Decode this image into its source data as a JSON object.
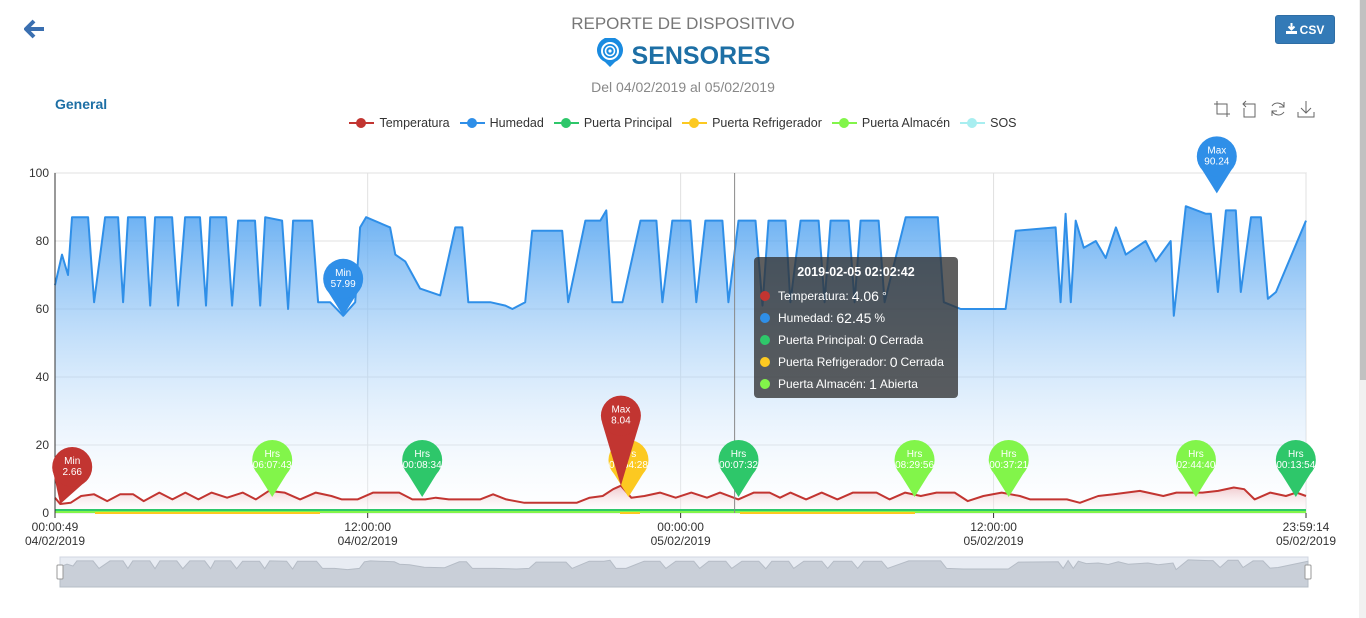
{
  "header": {
    "subtitle": "REPORTE DE DISPOSITIVO",
    "title": "SENSORES",
    "date_range": "Del 04/02/2019 al 05/02/2019",
    "csv_label": "CSV",
    "section": "General"
  },
  "toolbox": [
    "zoom-icon",
    "zoom-reset-icon",
    "restore-icon",
    "save-image-icon"
  ],
  "legend": [
    {
      "name": "Temperatura",
      "color": "#c23531"
    },
    {
      "name": "Humedad",
      "color": "#2f8fe8"
    },
    {
      "name": "Puerta Principal",
      "color": "#2ec76a"
    },
    {
      "name": "Puerta Refrigerador",
      "color": "#fcc921"
    },
    {
      "name": "Puerta Almacén",
      "color": "#82f54a"
    },
    {
      "name": "SOS",
      "color": "#a8eef0"
    }
  ],
  "tooltip": {
    "title": "2019-02-05 02:02:42",
    "rows": [
      {
        "label": "Temperatura:",
        "value": "4.06",
        "unit": "°",
        "color": "#c23531"
      },
      {
        "label": "Humedad:",
        "value": "62.45",
        "unit": "%",
        "color": "#2f8fe8"
      },
      {
        "label": "Puerta Principal:",
        "value": "0",
        "unit": "Cerrada",
        "color": "#2ec76a"
      },
      {
        "label": "Puerta Refrigerador:",
        "value": "0",
        "unit": "Cerrada",
        "color": "#fcc921"
      },
      {
        "label": "Puerta Almacén:",
        "value": "1",
        "unit": "Abierta",
        "color": "#82f54a"
      }
    ]
  },
  "chart_data": {
    "type": "line",
    "x_unit": "hours since 04/02/2019 00:00:49",
    "xlim": [
      0,
      47.97
    ],
    "ylim": [
      0,
      100
    ],
    "y_ticks": [
      "0",
      "20",
      "40",
      "60",
      "80",
      "100"
    ],
    "x_ticks": [
      {
        "at": 0,
        "time": "00:00:49",
        "date": "04/02/2019"
      },
      {
        "at": 11.99,
        "time": "12:00:00",
        "date": "04/02/2019"
      },
      {
        "at": 23.99,
        "time": "00:00:00",
        "date": "05/02/2019"
      },
      {
        "at": 35.99,
        "time": "12:00:00",
        "date": "05/02/2019"
      },
      {
        "at": 47.97,
        "time": "23:59:14",
        "date": "05/02/2019"
      }
    ],
    "crosshair_at": 26.06,
    "series": [
      {
        "name": "Humedad",
        "color": "#2f8fe8",
        "points": [
          [
            0,
            67
          ],
          [
            0.27,
            76
          ],
          [
            0.5,
            70
          ],
          [
            0.65,
            87
          ],
          [
            1.27,
            87
          ],
          [
            1.5,
            62
          ],
          [
            1.92,
            87
          ],
          [
            2.42,
            87
          ],
          [
            2.61,
            62
          ],
          [
            2.8,
            87
          ],
          [
            3.45,
            87
          ],
          [
            3.65,
            61
          ],
          [
            3.84,
            87
          ],
          [
            4.49,
            87
          ],
          [
            4.72,
            61
          ],
          [
            4.99,
            87
          ],
          [
            5.56,
            87
          ],
          [
            5.79,
            61
          ],
          [
            5.95,
            87
          ],
          [
            6.56,
            87
          ],
          [
            6.79,
            61
          ],
          [
            7.02,
            86
          ],
          [
            7.67,
            86
          ],
          [
            7.87,
            61
          ],
          [
            8.06,
            87
          ],
          [
            8.71,
            86
          ],
          [
            8.94,
            60
          ],
          [
            9.13,
            86
          ],
          [
            9.86,
            86
          ],
          [
            10.09,
            62
          ],
          [
            10.55,
            62
          ],
          [
            11.05,
            58
          ],
          [
            11.51,
            62
          ],
          [
            11.7,
            84
          ],
          [
            11.93,
            87
          ],
          [
            12.85,
            84
          ],
          [
            13.05,
            76
          ],
          [
            13.43,
            74
          ],
          [
            14.0,
            66
          ],
          [
            14.77,
            64
          ],
          [
            15.35,
            84
          ],
          [
            15.62,
            84
          ],
          [
            15.85,
            62
          ],
          [
            16.69,
            62
          ],
          [
            17.27,
            61
          ],
          [
            17.54,
            60
          ],
          [
            18.03,
            62
          ],
          [
            18.3,
            83
          ],
          [
            19.45,
            83
          ],
          [
            19.68,
            62
          ],
          [
            20.34,
            86
          ],
          [
            20.91,
            86
          ],
          [
            21.14,
            89
          ],
          [
            21.37,
            62
          ],
          [
            21.76,
            62
          ],
          [
            22.45,
            86
          ],
          [
            23.06,
            86
          ],
          [
            23.29,
            62
          ],
          [
            23.67,
            86
          ],
          [
            24.36,
            86
          ],
          [
            24.59,
            62
          ],
          [
            24.94,
            86
          ],
          [
            25.59,
            86
          ],
          [
            25.82,
            62
          ],
          [
            26.21,
            86
          ],
          [
            26.86,
            86
          ],
          [
            27.13,
            61
          ],
          [
            27.36,
            86
          ],
          [
            28.01,
            86
          ],
          [
            28.2,
            62
          ],
          [
            28.59,
            86
          ],
          [
            29.28,
            86
          ],
          [
            29.51,
            62
          ],
          [
            29.74,
            86
          ],
          [
            30.43,
            86
          ],
          [
            30.66,
            62
          ],
          [
            30.89,
            86
          ],
          [
            31.58,
            86
          ],
          [
            31.81,
            62
          ],
          [
            32.62,
            87
          ],
          [
            33.85,
            87
          ],
          [
            34.08,
            62
          ],
          [
            34.73,
            60
          ],
          [
            35.3,
            60
          ],
          [
            36.07,
            60
          ],
          [
            36.45,
            60
          ],
          [
            36.84,
            83
          ],
          [
            38.37,
            84
          ],
          [
            38.56,
            62
          ],
          [
            38.75,
            88
          ],
          [
            38.95,
            62
          ],
          [
            39.14,
            86
          ],
          [
            39.45,
            78
          ],
          [
            39.91,
            80
          ],
          [
            40.29,
            75
          ],
          [
            40.68,
            84
          ],
          [
            41.06,
            76
          ],
          [
            41.82,
            80
          ],
          [
            42.21,
            74
          ],
          [
            42.78,
            80
          ],
          [
            42.9,
            58
          ],
          [
            43.36,
            90.24
          ],
          [
            44.13,
            88
          ],
          [
            44.32,
            88
          ],
          [
            44.59,
            65
          ],
          [
            44.9,
            89
          ],
          [
            45.28,
            89
          ],
          [
            45.47,
            65
          ],
          [
            45.86,
            87
          ],
          [
            46.24,
            87
          ],
          [
            46.51,
            63
          ],
          [
            46.82,
            65
          ],
          [
            47.97,
            86
          ]
        ]
      },
      {
        "name": "Temperatura",
        "color": "#c23531",
        "points": [
          [
            0,
            4.5
          ],
          [
            0.2,
            2.66
          ],
          [
            0.6,
            3
          ],
          [
            1.0,
            5
          ],
          [
            1.5,
            5.5
          ],
          [
            2.0,
            3.5
          ],
          [
            2.5,
            5.5
          ],
          [
            3.0,
            5.5
          ],
          [
            3.4,
            3.5
          ],
          [
            4.0,
            6
          ],
          [
            4.5,
            4
          ],
          [
            5.0,
            6
          ],
          [
            5.5,
            4
          ],
          [
            6.0,
            6
          ],
          [
            6.6,
            4.5
          ],
          [
            7.2,
            6
          ],
          [
            7.7,
            4
          ],
          [
            8.2,
            6.5
          ],
          [
            8.8,
            6
          ],
          [
            9.4,
            4
          ],
          [
            10.0,
            6
          ],
          [
            10.6,
            5
          ],
          [
            11.0,
            4
          ],
          [
            11.6,
            4
          ],
          [
            12.2,
            6
          ],
          [
            13.2,
            6
          ],
          [
            13.7,
            4
          ],
          [
            14.2,
            4
          ],
          [
            14.6,
            4.5
          ],
          [
            15.1,
            4
          ],
          [
            16.3,
            4
          ],
          [
            16.8,
            5.5
          ],
          [
            17.3,
            4
          ],
          [
            18.0,
            3
          ],
          [
            20.0,
            3
          ],
          [
            20.5,
            4.5
          ],
          [
            21.0,
            5
          ],
          [
            21.4,
            7
          ],
          [
            21.7,
            8.04
          ],
          [
            22.1,
            4.5
          ],
          [
            22.6,
            5
          ],
          [
            23.2,
            6
          ],
          [
            23.8,
            4.5
          ],
          [
            24.4,
            6
          ],
          [
            25.0,
            4.5
          ],
          [
            25.5,
            6
          ],
          [
            26.2,
            4
          ],
          [
            26.8,
            6
          ],
          [
            27.4,
            6
          ],
          [
            27.8,
            4.5
          ],
          [
            28.2,
            6
          ],
          [
            28.8,
            4
          ],
          [
            29.4,
            6
          ],
          [
            30.0,
            4
          ],
          [
            30.6,
            6
          ],
          [
            31.5,
            6
          ],
          [
            32.0,
            4
          ],
          [
            32.6,
            6
          ],
          [
            33.2,
            5
          ],
          [
            33.8,
            6
          ],
          [
            34.5,
            6
          ],
          [
            35.0,
            3.5
          ],
          [
            35.6,
            5
          ],
          [
            36.3,
            6
          ],
          [
            37.0,
            5
          ],
          [
            37.4,
            4
          ],
          [
            38.8,
            4
          ],
          [
            39.3,
            3
          ],
          [
            40.0,
            5
          ],
          [
            40.6,
            5.5
          ],
          [
            41.6,
            6.5
          ],
          [
            42.5,
            5
          ],
          [
            43.0,
            6
          ],
          [
            44.0,
            6
          ],
          [
            44.6,
            6.5
          ],
          [
            45.2,
            7.5
          ],
          [
            45.6,
            7
          ],
          [
            46.0,
            4
          ],
          [
            46.6,
            6
          ],
          [
            47.2,
            5
          ],
          [
            47.6,
            6
          ],
          [
            47.97,
            5
          ]
        ]
      }
    ],
    "markers": [
      {
        "series": "Temperatura",
        "label": "Min",
        "value": "2.66",
        "x": 0.2,
        "y": 2.66,
        "color": "#c23531"
      },
      {
        "series": "Temperatura",
        "label": "Max",
        "value": "8.04",
        "x": 21.7,
        "y": 8.04,
        "color": "#c23531"
      },
      {
        "series": "Humedad",
        "label": "Min",
        "value": "57.99",
        "x": 11.05,
        "y": 58,
        "color": "#2f8fe8"
      },
      {
        "series": "Humedad",
        "label": "Max",
        "value": "90.24",
        "x": 44.55,
        "y": 94,
        "color": "#2f8fe8"
      },
      {
        "series": "Puerta Almacén",
        "label": "Hrs",
        "value": "06:07:43",
        "x": 8.33,
        "y": 4.7,
        "color": "#82f54a"
      },
      {
        "series": "Puerta Principal",
        "label": "Hrs",
        "value": "00:08:34",
        "x": 14.08,
        "y": 4.7,
        "color": "#2ec76a"
      },
      {
        "series": "Puerta Refrigerador",
        "label": "Hrs",
        "value": "00:54:28",
        "x": 21.99,
        "y": 4.7,
        "color": "#fcc921"
      },
      {
        "series": "Puerta Principal",
        "label": "Hrs",
        "value": "00:07:32",
        "x": 26.21,
        "y": 4.7,
        "color": "#2ec76a"
      },
      {
        "series": "Puerta Almacén",
        "label": "Hrs",
        "value": "08:29:56",
        "x": 32.96,
        "y": 4.7,
        "color": "#82f54a"
      },
      {
        "series": "Puerta Almacén",
        "label": "Hrs",
        "value": "00:37:21",
        "x": 36.57,
        "y": 4.7,
        "color": "#82f54a"
      },
      {
        "series": "Puerta Almacén",
        "label": "Hrs",
        "value": "02:44:40",
        "x": 43.75,
        "y": 4.7,
        "color": "#82f54a"
      },
      {
        "series": "Puerta Principal",
        "label": "Hrs",
        "value": "00:13:54",
        "x": 47.58,
        "y": 4.7,
        "color": "#2ec76a"
      }
    ]
  }
}
